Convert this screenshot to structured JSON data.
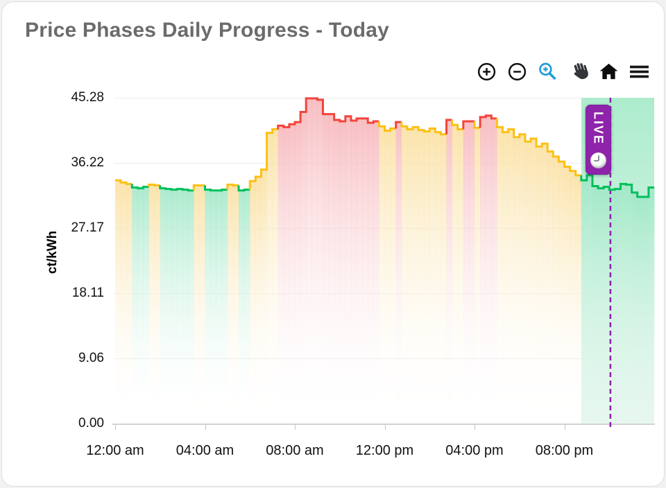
{
  "header": {
    "title": "Price Phases Daily Progress - Today"
  },
  "toolbar": {
    "buttons": [
      {
        "name": "zoom-in",
        "icon": "circle-plus-icon"
      },
      {
        "name": "zoom-out",
        "icon": "circle-minus-icon"
      },
      {
        "name": "box-zoom",
        "icon": "magnifier-plus-icon",
        "color": "#1f9cd7"
      },
      {
        "name": "pan",
        "icon": "hand-icon"
      },
      {
        "name": "reset-home",
        "icon": "home-icon"
      },
      {
        "name": "menu",
        "icon": "hamburger-icon"
      }
    ]
  },
  "live_badge": {
    "label": "LIVE",
    "icon": "clock-icon",
    "color": "#8e24aa"
  },
  "chart_data": {
    "type": "area",
    "subtype": "step-area-phase-colored",
    "title": "Price Phases Daily Progress - Today",
    "ylabel": "ct/kWh",
    "ylim": [
      0,
      45.28
    ],
    "y_ticks": [
      "45.28",
      "36.22",
      "27.17",
      "18.11",
      "9.06",
      "0.00"
    ],
    "y_tick_values": [
      45.28,
      36.22,
      27.17,
      18.11,
      9.06,
      0.0
    ],
    "x_ticks": [
      "12:00 am",
      "04:00 am",
      "08:00 am",
      "12:00 pm",
      "04:00 pm",
      "08:00 pm"
    ],
    "x_tick_hours": [
      0,
      4,
      8,
      12,
      16,
      20
    ],
    "start_hour": 0,
    "end_hour": 24,
    "interval_minutes": 15,
    "grid": true,
    "legend": false,
    "values": [
      33.8,
      33.5,
      33.3,
      32.8,
      32.7,
      32.9,
      33.2,
      33.1,
      32.7,
      32.6,
      32.5,
      32.6,
      32.5,
      32.4,
      33.1,
      33.1,
      32.5,
      32.4,
      32.4,
      32.5,
      33.2,
      33.1,
      32.4,
      32.5,
      33.7,
      34.3,
      35.3,
      40.4,
      40.9,
      41.4,
      41.2,
      41.6,
      41.9,
      43.3,
      45.2,
      45.2,
      45.0,
      43.0,
      43.0,
      42.2,
      42.0,
      42.7,
      42.1,
      42.4,
      42.4,
      41.8,
      42.0,
      41.3,
      40.7,
      41.0,
      41.9,
      41.3,
      40.9,
      41.2,
      40.8,
      40.6,
      41.0,
      40.5,
      40.2,
      42.2,
      41.5,
      40.9,
      42.0,
      42.0,
      41.1,
      42.6,
      42.8,
      42.4,
      41.2,
      40.5,
      40.9,
      39.8,
      40.2,
      39.2,
      39.6,
      38.5,
      38.9,
      37.8,
      37.1,
      36.4,
      35.7,
      35.1,
      34.5,
      33.8,
      34.5,
      33.0,
      32.7,
      32.9,
      32.5,
      32.6,
      33.3,
      33.2,
      32.1,
      31.5,
      31.5,
      32.8
    ],
    "phases_by_hour": [
      "yyyg",
      "ggyy",
      "gggg",
      "ggyy",
      "gggg",
      "yygg",
      "yyyy",
      "yrrr",
      "rrrr",
      "rrrr",
      "rrrr",
      "rrry",
      "yyry",
      "yyyy",
      "yyyr",
      "yyrr",
      "yrrr",
      "yyyy",
      "yyyy",
      "yyyy",
      "yyyg",
      "gggg",
      "gggg",
      "gggg"
    ],
    "phase_colors": {
      "g": {
        "name": "green",
        "line": "#00bf5c",
        "fill": "#9fe7c6"
      },
      "y": {
        "name": "yellow",
        "line": "#fcc115",
        "fill": "#fadf9e"
      },
      "r": {
        "name": "red",
        "line": "#f2443a",
        "fill": "#f6b4b9"
      }
    },
    "now_hour": 22.05,
    "now_line_color": "#8e24aa",
    "current_phase_region": {
      "phase": "green",
      "start_hour": 20.75,
      "end_hour": 24,
      "fill_top": "#a9ebcb",
      "fill_bottom": "#e3f6ed"
    }
  }
}
